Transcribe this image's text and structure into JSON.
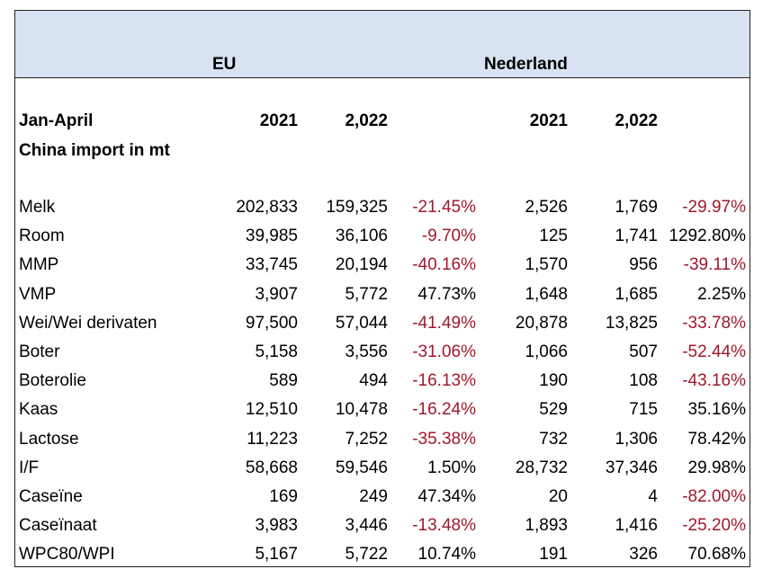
{
  "header": {
    "group_eu": "EU",
    "group_nl": "Nederland"
  },
  "subheader": {
    "period": "Jan-April",
    "subtitle": "China import in mt",
    "eu_year1": "2021",
    "eu_year2": "2,022",
    "nl_year1": "2021",
    "nl_year2": "2,022"
  },
  "colors": {
    "header_band": "#d9e2f3",
    "negative": "#a0182b"
  },
  "rows": [
    {
      "product": "Melk",
      "eu2021": "202,833",
      "eu2022": "159,325",
      "eu_change": "-21.45%",
      "nl2021": "2,526",
      "nl2022": "1,769",
      "nl_change": "-29.97%"
    },
    {
      "product": "Room",
      "eu2021": "39,985",
      "eu2022": "36,106",
      "eu_change": "-9.70%",
      "nl2021": "125",
      "nl2022": "1,741",
      "nl_change": "1292.80%"
    },
    {
      "product": "MMP",
      "eu2021": "33,745",
      "eu2022": "20,194",
      "eu_change": "-40.16%",
      "nl2021": "1,570",
      "nl2022": "956",
      "nl_change": "-39.11%"
    },
    {
      "product": "VMP",
      "eu2021": "3,907",
      "eu2022": "5,772",
      "eu_change": "47.73%",
      "nl2021": "1,648",
      "nl2022": "1,685",
      "nl_change": "2.25%"
    },
    {
      "product": "Wei/Wei derivaten",
      "eu2021": "97,500",
      "eu2022": "57,044",
      "eu_change": "-41.49%",
      "nl2021": "20,878",
      "nl2022": "13,825",
      "nl_change": "-33.78%"
    },
    {
      "product": "Boter",
      "eu2021": "5,158",
      "eu2022": "3,556",
      "eu_change": "-31.06%",
      "nl2021": "1,066",
      "nl2022": "507",
      "nl_change": "-52.44%"
    },
    {
      "product": "Boterolie",
      "eu2021": "589",
      "eu2022": "494",
      "eu_change": "-16.13%",
      "nl2021": "190",
      "nl2022": "108",
      "nl_change": "-43.16%"
    },
    {
      "product": "Kaas",
      "eu2021": "12,510",
      "eu2022": "10,478",
      "eu_change": "-16.24%",
      "nl2021": "529",
      "nl2022": "715",
      "nl_change": "35.16%"
    },
    {
      "product": "Lactose",
      "eu2021": "11,223",
      "eu2022": "7,252",
      "eu_change": "-35.38%",
      "nl2021": "732",
      "nl2022": "1,306",
      "nl_change": "78.42%"
    },
    {
      "product": "I/F",
      "eu2021": "58,668",
      "eu2022": "59,546",
      "eu_change": "1.50%",
      "nl2021": "28,732",
      "nl2022": "37,346",
      "nl_change": "29.98%"
    },
    {
      "product": "Caseïne",
      "eu2021": "169",
      "eu2022": "249",
      "eu_change": "47.34%",
      "nl2021": "20",
      "nl2022": "4",
      "nl_change": "-82.00%"
    },
    {
      "product": "Caseïnaat",
      "eu2021": "3,983",
      "eu2022": "3,446",
      "eu_change": "-13.48%",
      "nl2021": "1,893",
      "nl2022": "1,416",
      "nl_change": "-25.20%"
    },
    {
      "product": "WPC80/WPI",
      "eu2021": "5,167",
      "eu2022": "5,722",
      "eu_change": "10.74%",
      "nl2021": "191",
      "nl2022": "326",
      "nl_change": "70.68%"
    }
  ]
}
